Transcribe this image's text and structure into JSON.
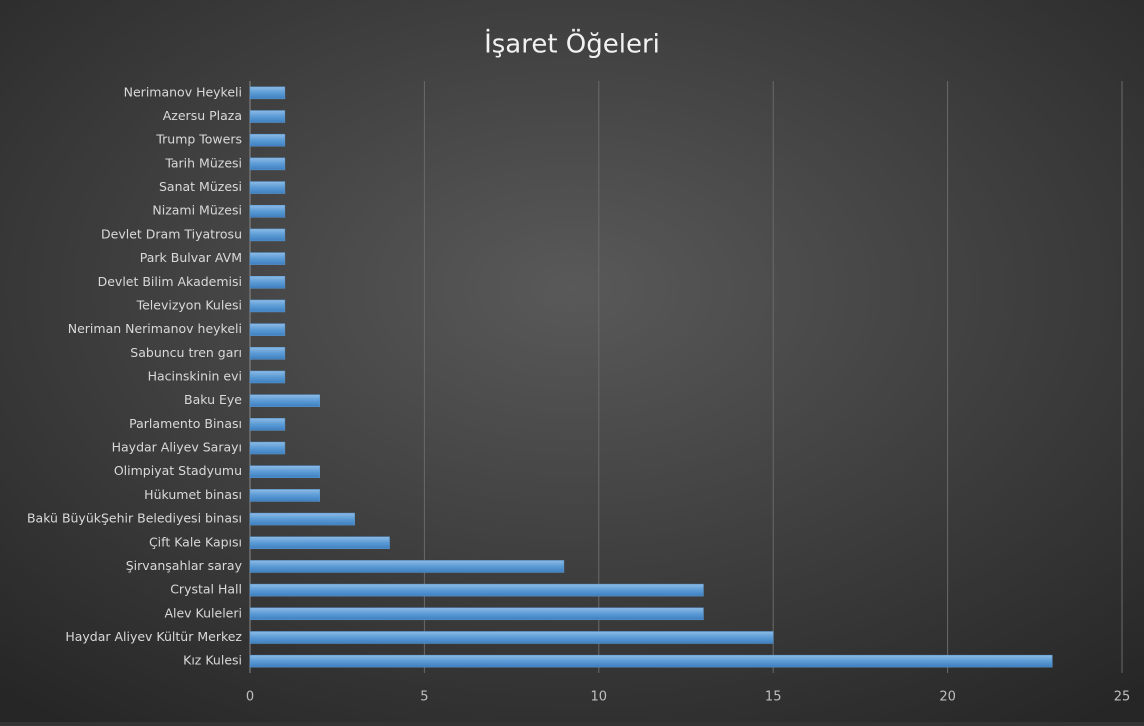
{
  "chart_data": {
    "type": "bar",
    "orientation": "horizontal",
    "title": "İşaret Öğeleri",
    "categories": [
      "Nerimanov Heykeli",
      "Azersu Plaza",
      "Trump Towers",
      "Tarih Müzesi",
      "Sanat Müzesi",
      "Nizami Müzesi",
      "Devlet Dram Tiyatrosu",
      "Park Bulvar AVM",
      "Devlet Bilim Akademisi",
      "Televizyon Kulesi",
      "Neriman Nerimanov heykeli",
      "Sabuncu tren garı",
      "Hacinskinin evi",
      "Baku Eye",
      "Parlamento Binası",
      "Haydar Aliyev Sarayı",
      "Olimpiyat Stadyumu",
      "Hükumet binası",
      "Bakü BüyükŞehir Belediyesi binası",
      "Çift Kale Kapısı",
      "Şirvanşahlar saray",
      "Crystal Hall",
      "Alev Kuleleri",
      "Haydar Aliyev Kültür Merkez",
      "Kız Kulesi"
    ],
    "values": [
      1,
      1,
      1,
      1,
      1,
      1,
      1,
      1,
      1,
      1,
      1,
      1,
      1,
      2,
      1,
      1,
      2,
      2,
      3,
      4,
      9,
      13,
      13,
      15,
      23
    ],
    "color": "#5b9bd5",
    "xlim": [
      0,
      25
    ],
    "xticks": [
      0,
      5,
      10,
      15,
      20,
      25
    ],
    "grid": true
  }
}
